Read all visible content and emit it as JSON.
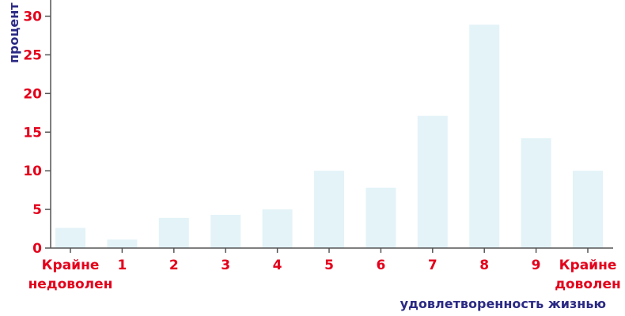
{
  "chart_data": {
    "type": "bar",
    "xlabel": "удовлетворенность жизнью",
    "ylabel": "процент",
    "ylim": [
      0,
      30
    ],
    "yticks": [
      "0",
      "5",
      "10",
      "15",
      "20",
      "25",
      "30"
    ],
    "grid": false,
    "categories": [
      [
        "Крайне",
        "недоволен"
      ],
      [
        "1"
      ],
      [
        "2"
      ],
      [
        "3"
      ],
      [
        "4"
      ],
      [
        "5"
      ],
      [
        "6"
      ],
      [
        "7"
      ],
      [
        "8"
      ],
      [
        "9"
      ],
      [
        "Крайне",
        "доволен"
      ]
    ],
    "values": [
      2.6,
      1.1,
      3.9,
      4.3,
      5.0,
      10.0,
      7.8,
      17.1,
      28.9,
      14.2,
      10.0
    ],
    "colors": {
      "bar": "#e3f3f8",
      "tick_labels": "#e3001b",
      "axis_labels": "#2b2a84",
      "axis": "#555555"
    }
  }
}
